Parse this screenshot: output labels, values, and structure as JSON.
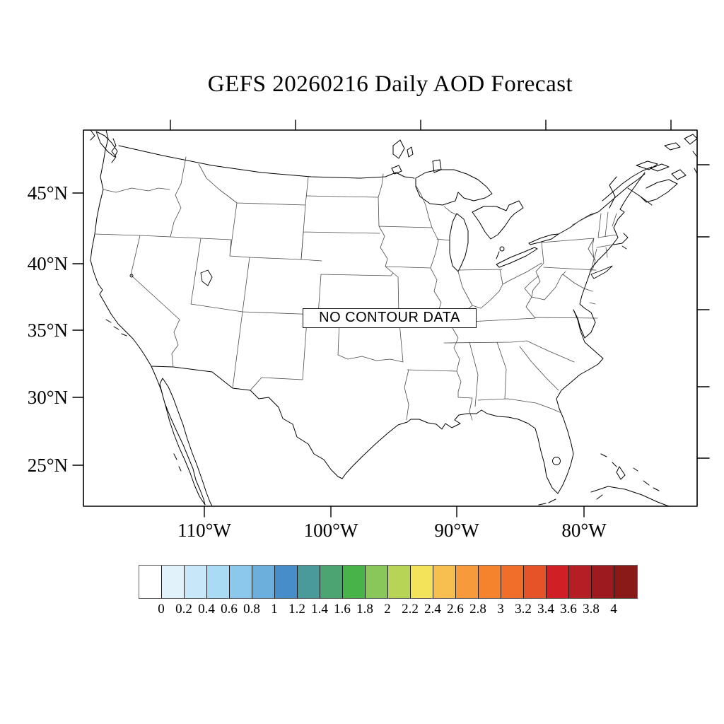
{
  "figure": {
    "title": "GEFS 20260216 Daily AOD Forecast"
  },
  "map": {
    "no_data_label": "NO CONTOUR DATA",
    "lat_labels": [
      "45°N",
      "40°N",
      "35°N",
      "30°N",
      "25°N"
    ],
    "lon_labels": [
      "110°W",
      "100°W",
      "90°W",
      "80°W"
    ]
  },
  "colorbar": {
    "tick_labels": [
      "0",
      "0.2",
      "0.4",
      "0.6",
      "0.8",
      "1",
      "1.2",
      "1.4",
      "1.6",
      "1.8",
      "2",
      "2.2",
      "2.4",
      "2.6",
      "2.8",
      "3",
      "3.2",
      "3.4",
      "3.6",
      "3.8",
      "4"
    ],
    "colors": [
      "#FFFFFF",
      "#E2F2FA",
      "#C8E7F7",
      "#A9DBF4",
      "#8BC8EC",
      "#6CAEDC",
      "#478DC9",
      "#4A9A9B",
      "#4BA472",
      "#47B348",
      "#8AC75A",
      "#B8D457",
      "#F2E35B",
      "#F7BE50",
      "#F69A3B",
      "#F5822D",
      "#F06E2A",
      "#E55429",
      "#D02026",
      "#B51F24",
      "#9D1B1E",
      "#8A1A18"
    ]
  }
}
